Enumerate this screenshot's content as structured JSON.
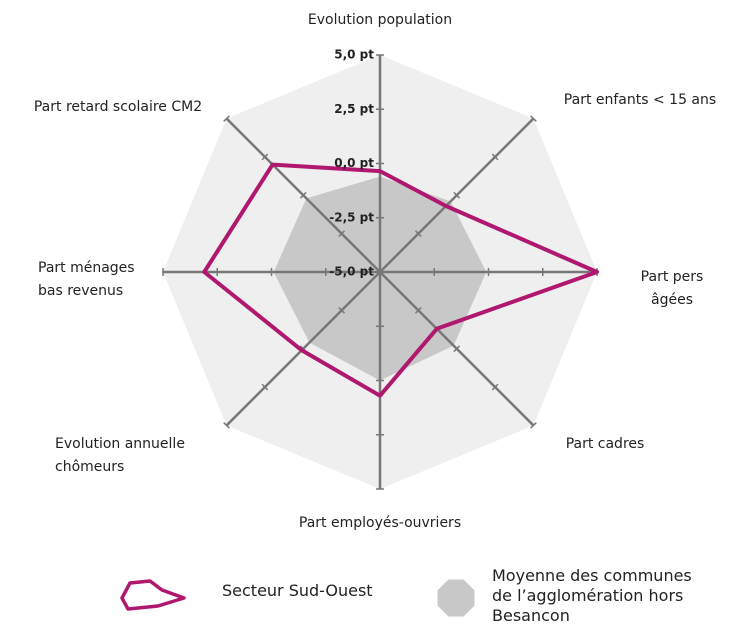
{
  "chart_data": {
    "type": "radar",
    "categories": [
      [
        "Evolution population"
      ],
      [
        "Part enfants < 15 ans"
      ],
      [
        "Part pers",
        "âgées"
      ],
      [
        "Part cadres"
      ],
      [
        "Part employés-ouvriers"
      ],
      [
        "Evolution annuelle",
        "chômeurs"
      ],
      [
        "Part ménages",
        "bas revenus"
      ],
      [
        "Part retard scolaire CM2"
      ]
    ],
    "rlim": [
      -5,
      5
    ],
    "rticks": [
      {
        "value": 5,
        "label": "5,0 pt"
      },
      {
        "value": 2.5,
        "label": "2,5 pt"
      },
      {
        "value": 0,
        "label": "0,0 pt"
      },
      {
        "value": -2.5,
        "label": "-2,5 pt"
      },
      {
        "value": -5,
        "label": "-5,0 pt"
      }
    ],
    "series": [
      {
        "name": "Secteur Sud-Ouest",
        "color": "#b0176f",
        "values": [
          -0.35,
          -0.7,
          5.0,
          -1.3,
          0.7,
          0.1,
          3.1,
          2.0
        ]
      },
      {
        "name": "Moyenne des communes de l’agglomération hors Besancon",
        "color": "#c8c8c8",
        "values": [
          -0.6,
          -0.4,
          -0.1,
          -0.2,
          0,
          -0.4,
          -0.1,
          -0.2
        ]
      }
    ]
  }
}
